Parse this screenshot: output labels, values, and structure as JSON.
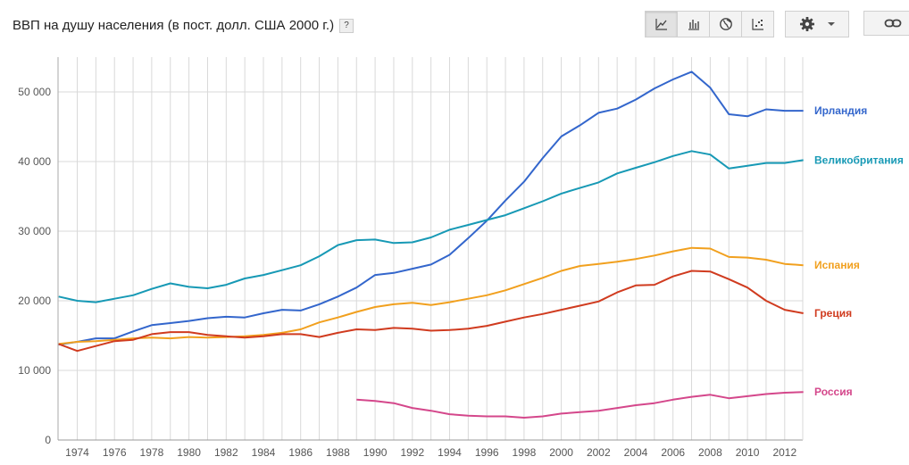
{
  "header": {
    "title": "ВВП на душу населения (в пост. долл. США 2000 г.)",
    "help_label": "?"
  },
  "toolbar": {
    "buttons": [
      "line-chart-icon",
      "bar-chart-icon",
      "globe-map-icon",
      "scatter-chart-icon"
    ],
    "active": "line-chart-icon",
    "settings_icon": "gear-icon",
    "dropdown_icon": "chevron-down-icon",
    "link_icon": "link-icon"
  },
  "chart_data": {
    "type": "line",
    "title": "ВВП на душу населения (в пост. долл. США 2000 г.)",
    "xlim": [
      1973,
      2013
    ],
    "ylim": [
      0,
      55000
    ],
    "x_ticks": [
      1974,
      1976,
      1978,
      1980,
      1982,
      1984,
      1986,
      1988,
      1990,
      1992,
      1994,
      1996,
      1998,
      2000,
      2002,
      2004,
      2006,
      2008,
      2010,
      2012
    ],
    "x_tick_labels": [
      "1974",
      "1976",
      "1978",
      "1980",
      "1982",
      "1984",
      "1986",
      "1988",
      "1990",
      "1992",
      "1994",
      "1996",
      "1998",
      "2000",
      "2002",
      "2004",
      "2006",
      "2008",
      "2010",
      "2012"
    ],
    "y_ticks": [
      0,
      10000,
      20000,
      30000,
      40000,
      50000
    ],
    "y_tick_labels": [
      "0",
      "10 000",
      "20 000",
      "30 000",
      "40 000",
      "50 000"
    ],
    "grid": true,
    "legend_placement": "right end labels",
    "series": [
      {
        "name": "Ирландия",
        "color": "#3366cc",
        "x": [
          1973,
          1974,
          1975,
          1976,
          1977,
          1978,
          1979,
          1980,
          1981,
          1982,
          1983,
          1984,
          1985,
          1986,
          1987,
          1988,
          1989,
          1990,
          1991,
          1992,
          1993,
          1994,
          1995,
          1996,
          1997,
          1998,
          1999,
          2000,
          2001,
          2002,
          2003,
          2004,
          2005,
          2006,
          2007,
          2008,
          2009,
          2010,
          2011,
          2012,
          2013
        ],
        "y": [
          13700,
          14100,
          14600,
          14600,
          15600,
          16500,
          16800,
          17100,
          17500,
          17700,
          17600,
          18200,
          18700,
          18600,
          19500,
          20600,
          21900,
          23700,
          24000,
          24600,
          25200,
          26600,
          29000,
          31500,
          34400,
          37100,
          40500,
          43600,
          45200,
          47000,
          47600,
          48900,
          50500,
          51800,
          52900,
          50600,
          46800,
          46500,
          47500,
          47300,
          47300
        ]
      },
      {
        "name": "Великобритания",
        "color": "#1799b5",
        "x": [
          1973,
          1974,
          1975,
          1976,
          1977,
          1978,
          1979,
          1980,
          1981,
          1982,
          1983,
          1984,
          1985,
          1986,
          1987,
          1988,
          1989,
          1990,
          1991,
          1992,
          1993,
          1994,
          1995,
          1996,
          1997,
          1998,
          1999,
          2000,
          2001,
          2002,
          2003,
          2004,
          2005,
          2006,
          2007,
          2008,
          2009,
          2010,
          2011,
          2012,
          2013
        ],
        "y": [
          20600,
          20000,
          19800,
          20300,
          20800,
          21700,
          22500,
          22000,
          21800,
          22300,
          23200,
          23700,
          24400,
          25100,
          26400,
          28000,
          28700,
          28800,
          28300,
          28400,
          29100,
          30200,
          30900,
          31600,
          32300,
          33300,
          34300,
          35400,
          36200,
          37000,
          38300,
          39100,
          39900,
          40800,
          41500,
          41000,
          39000,
          39400,
          39800,
          39800,
          40200
        ]
      },
      {
        "name": "Испания",
        "color": "#f1a01e",
        "x": [
          1973,
          1974,
          1975,
          1976,
          1977,
          1978,
          1979,
          1980,
          1981,
          1982,
          1983,
          1984,
          1985,
          1986,
          1987,
          1988,
          1989,
          1990,
          1991,
          1992,
          1993,
          1994,
          1995,
          1996,
          1997,
          1998,
          1999,
          2000,
          2001,
          2002,
          2003,
          2004,
          2005,
          2006,
          2007,
          2008,
          2009,
          2010,
          2011,
          2012,
          2013
        ],
        "y": [
          13800,
          14100,
          14200,
          14400,
          14600,
          14700,
          14600,
          14800,
          14700,
          14800,
          14900,
          15100,
          15400,
          15900,
          16900,
          17600,
          18400,
          19100,
          19500,
          19700,
          19400,
          19800,
          20300,
          20800,
          21500,
          22400,
          23300,
          24300,
          25000,
          25300,
          25600,
          26000,
          26500,
          27100,
          27600,
          27500,
          26300,
          26200,
          25900,
          25300,
          25100
        ]
      },
      {
        "name": "Греция",
        "color": "#d03b1f",
        "x": [
          1973,
          1974,
          1975,
          1976,
          1977,
          1978,
          1979,
          1980,
          1981,
          1982,
          1983,
          1984,
          1985,
          1986,
          1987,
          1988,
          1989,
          1990,
          1991,
          1992,
          1993,
          1994,
          1995,
          1996,
          1997,
          1998,
          1999,
          2000,
          2001,
          2002,
          2003,
          2004,
          2005,
          2006,
          2007,
          2008,
          2009,
          2010,
          2011,
          2012,
          2013
        ],
        "y": [
          13800,
          12800,
          13500,
          14200,
          14400,
          15200,
          15500,
          15500,
          15100,
          14900,
          14700,
          14900,
          15200,
          15200,
          14800,
          15400,
          15900,
          15800,
          16100,
          16000,
          15700,
          15800,
          16000,
          16400,
          17000,
          17600,
          18100,
          18700,
          19300,
          19900,
          21200,
          22200,
          22300,
          23500,
          24300,
          24200,
          23100,
          21900,
          20000,
          18700,
          18200
        ]
      },
      {
        "name": "Россия",
        "color": "#d4478b",
        "x": [
          1989,
          1990,
          1991,
          1992,
          1993,
          1994,
          1995,
          1996,
          1997,
          1998,
          1999,
          2000,
          2001,
          2002,
          2003,
          2004,
          2005,
          2006,
          2007,
          2008,
          2009,
          2010,
          2011,
          2012,
          2013
        ],
        "y": [
          5800,
          5600,
          5300,
          4600,
          4200,
          3700,
          3500,
          3400,
          3400,
          3200,
          3400,
          3800,
          4000,
          4200,
          4600,
          5000,
          5300,
          5800,
          6200,
          6500,
          6000,
          6300,
          6600,
          6800,
          6900
        ]
      }
    ]
  }
}
